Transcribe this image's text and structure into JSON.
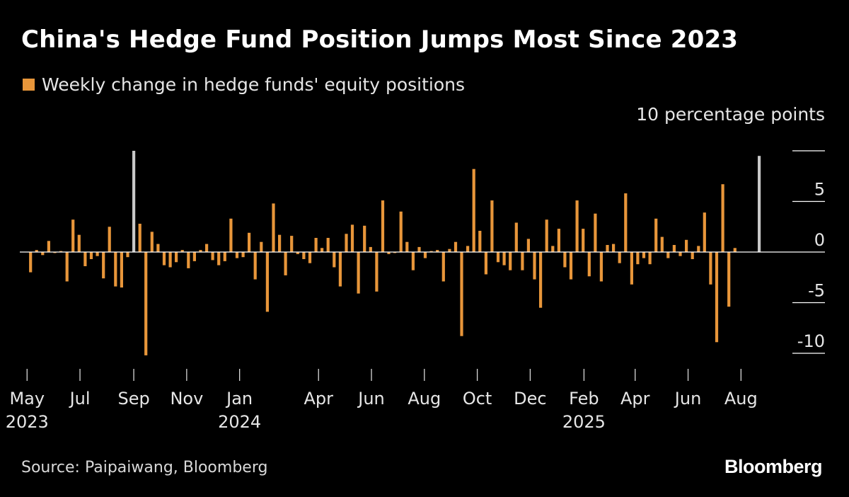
{
  "title": "China's Hedge Fund Position Jumps Most Since 2023",
  "source": "Source: Paipaiwang, Bloomberg",
  "brand": "Bloomberg",
  "colors": {
    "background": "#000000",
    "bar": "#e8963a",
    "highlight": "#c8c8c8",
    "axis": "#ffffff"
  },
  "chart_data": {
    "type": "bar",
    "legend": "Weekly change in hedge funds' equity positions",
    "ylabel": "10 percentage points",
    "ylim": [
      -10.5,
      10
    ],
    "yticks": [
      10,
      5,
      0,
      -5,
      -10
    ],
    "ytick_labels": [
      "",
      "5",
      "0",
      "-5",
      "-10"
    ],
    "x_start": "2023-04-21",
    "x_end": "2025-09-26",
    "month_ticks": [
      {
        "date": "2023-05-01",
        "label": "May",
        "year": "2023"
      },
      {
        "date": "2023-07-01",
        "label": "Jul"
      },
      {
        "date": "2023-09-01",
        "label": "Sep"
      },
      {
        "date": "2023-11-01",
        "label": "Nov"
      },
      {
        "date": "2024-01-01",
        "label": "Jan",
        "year": "2024"
      },
      {
        "date": "2024-04-01",
        "label": "Apr"
      },
      {
        "date": "2024-06-01",
        "label": "Jun"
      },
      {
        "date": "2024-08-01",
        "label": "Aug"
      },
      {
        "date": "2024-10-01",
        "label": "Oct"
      },
      {
        "date": "2024-12-01",
        "label": "Dec"
      },
      {
        "date": "2025-02-01",
        "label": "Feb",
        "year": "2025"
      },
      {
        "date": "2025-04-01",
        "label": "Apr"
      },
      {
        "date": "2025-06-01",
        "label": "Jun"
      },
      {
        "date": "2025-08-01",
        "label": "Aug"
      }
    ],
    "highlighted_dates": [
      "2023-09-01",
      "2025-08-22"
    ],
    "points": [
      {
        "date": "2023-05-05",
        "value": -2.0
      },
      {
        "date": "2023-05-12",
        "value": 0.2
      },
      {
        "date": "2023-05-19",
        "value": -0.3
      },
      {
        "date": "2023-05-26",
        "value": 1.1
      },
      {
        "date": "2023-06-02",
        "value": -0.1
      },
      {
        "date": "2023-06-09",
        "value": 0.1
      },
      {
        "date": "2023-06-16",
        "value": -2.9
      },
      {
        "date": "2023-06-23",
        "value": 3.2
      },
      {
        "date": "2023-06-30",
        "value": 1.7
      },
      {
        "date": "2023-07-07",
        "value": -1.4
      },
      {
        "date": "2023-07-14",
        "value": -0.7
      },
      {
        "date": "2023-07-21",
        "value": -0.4
      },
      {
        "date": "2023-07-28",
        "value": -2.6
      },
      {
        "date": "2023-08-04",
        "value": 2.5
      },
      {
        "date": "2023-08-11",
        "value": -3.4
      },
      {
        "date": "2023-08-18",
        "value": -3.5
      },
      {
        "date": "2023-08-25",
        "value": -0.5
      },
      {
        "date": "2023-09-01",
        "value": 10.0
      },
      {
        "date": "2023-09-08",
        "value": 2.8
      },
      {
        "date": "2023-09-15",
        "value": -10.2
      },
      {
        "date": "2023-09-22",
        "value": 2.0
      },
      {
        "date": "2023-09-29",
        "value": 0.8
      },
      {
        "date": "2023-10-06",
        "value": -1.3
      },
      {
        "date": "2023-10-13",
        "value": -1.5
      },
      {
        "date": "2023-10-20",
        "value": -1.0
      },
      {
        "date": "2023-10-27",
        "value": 0.2
      },
      {
        "date": "2023-11-03",
        "value": -1.6
      },
      {
        "date": "2023-11-10",
        "value": -0.9
      },
      {
        "date": "2023-11-17",
        "value": 0.2
      },
      {
        "date": "2023-11-24",
        "value": 0.8
      },
      {
        "date": "2023-12-01",
        "value": -0.8
      },
      {
        "date": "2023-12-08",
        "value": -1.3
      },
      {
        "date": "2023-12-15",
        "value": -0.9
      },
      {
        "date": "2023-12-22",
        "value": 3.3
      },
      {
        "date": "2023-12-29",
        "value": -0.6
      },
      {
        "date": "2024-01-05",
        "value": -0.5
      },
      {
        "date": "2024-01-12",
        "value": 1.9
      },
      {
        "date": "2024-01-19",
        "value": -2.7
      },
      {
        "date": "2024-01-26",
        "value": 1.0
      },
      {
        "date": "2024-02-02",
        "value": -5.9
      },
      {
        "date": "2024-02-09",
        "value": 4.8
      },
      {
        "date": "2024-02-16",
        "value": 1.7
      },
      {
        "date": "2024-02-23",
        "value": -2.3
      },
      {
        "date": "2024-03-01",
        "value": 1.6
      },
      {
        "date": "2024-03-08",
        "value": -0.2
      },
      {
        "date": "2024-03-15",
        "value": -0.7
      },
      {
        "date": "2024-03-22",
        "value": -1.1
      },
      {
        "date": "2024-03-29",
        "value": 1.4
      },
      {
        "date": "2024-04-05",
        "value": 0.4
      },
      {
        "date": "2024-04-12",
        "value": 1.4
      },
      {
        "date": "2024-04-19",
        "value": -1.5
      },
      {
        "date": "2024-04-26",
        "value": -3.4
      },
      {
        "date": "2024-05-03",
        "value": 1.8
      },
      {
        "date": "2024-05-10",
        "value": 2.7
      },
      {
        "date": "2024-05-17",
        "value": -4.1
      },
      {
        "date": "2024-05-24",
        "value": 2.6
      },
      {
        "date": "2024-05-31",
        "value": 0.5
      },
      {
        "date": "2024-06-07",
        "value": -3.9
      },
      {
        "date": "2024-06-14",
        "value": 5.1
      },
      {
        "date": "2024-06-21",
        "value": -0.2
      },
      {
        "date": "2024-06-28",
        "value": -0.1
      },
      {
        "date": "2024-07-05",
        "value": 4.0
      },
      {
        "date": "2024-07-12",
        "value": 1.0
      },
      {
        "date": "2024-07-19",
        "value": -1.8
      },
      {
        "date": "2024-07-26",
        "value": 0.5
      },
      {
        "date": "2024-08-02",
        "value": -0.6
      },
      {
        "date": "2024-08-09",
        "value": 0.1
      },
      {
        "date": "2024-08-16",
        "value": 0.2
      },
      {
        "date": "2024-08-23",
        "value": -2.9
      },
      {
        "date": "2024-08-30",
        "value": 0.3
      },
      {
        "date": "2024-09-06",
        "value": 1.0
      },
      {
        "date": "2024-09-13",
        "value": -8.3
      },
      {
        "date": "2024-09-20",
        "value": 0.6
      },
      {
        "date": "2024-09-27",
        "value": 8.2
      },
      {
        "date": "2024-10-04",
        "value": 2.1
      },
      {
        "date": "2024-10-11",
        "value": -2.2
      },
      {
        "date": "2024-10-18",
        "value": 5.1
      },
      {
        "date": "2024-10-25",
        "value": -1.0
      },
      {
        "date": "2024-11-01",
        "value": -1.3
      },
      {
        "date": "2024-11-08",
        "value": -1.8
      },
      {
        "date": "2024-11-15",
        "value": 2.9
      },
      {
        "date": "2024-11-22",
        "value": -1.8
      },
      {
        "date": "2024-11-29",
        "value": 1.3
      },
      {
        "date": "2024-12-06",
        "value": -2.7
      },
      {
        "date": "2024-12-13",
        "value": -5.5
      },
      {
        "date": "2024-12-20",
        "value": 3.2
      },
      {
        "date": "2024-12-27",
        "value": 0.6
      },
      {
        "date": "2025-01-03",
        "value": 2.3
      },
      {
        "date": "2025-01-10",
        "value": -1.5
      },
      {
        "date": "2025-01-17",
        "value": -2.7
      },
      {
        "date": "2025-01-24",
        "value": 5.1
      },
      {
        "date": "2025-01-31",
        "value": 2.3
      },
      {
        "date": "2025-02-07",
        "value": -2.4
      },
      {
        "date": "2025-02-14",
        "value": 3.8
      },
      {
        "date": "2025-02-21",
        "value": -2.9
      },
      {
        "date": "2025-02-28",
        "value": 0.7
      },
      {
        "date": "2025-03-07",
        "value": 0.8
      },
      {
        "date": "2025-03-14",
        "value": -1.1
      },
      {
        "date": "2025-03-21",
        "value": 5.8
      },
      {
        "date": "2025-03-28",
        "value": -3.2
      },
      {
        "date": "2025-04-04",
        "value": -1.2
      },
      {
        "date": "2025-04-11",
        "value": -0.6
      },
      {
        "date": "2025-04-18",
        "value": -1.2
      },
      {
        "date": "2025-04-25",
        "value": 3.3
      },
      {
        "date": "2025-05-02",
        "value": 1.5
      },
      {
        "date": "2025-05-09",
        "value": -0.6
      },
      {
        "date": "2025-05-16",
        "value": 0.7
      },
      {
        "date": "2025-05-23",
        "value": -0.4
      },
      {
        "date": "2025-05-30",
        "value": 1.2
      },
      {
        "date": "2025-06-06",
        "value": -0.7
      },
      {
        "date": "2025-06-13",
        "value": 0.6
      },
      {
        "date": "2025-06-20",
        "value": 3.9
      },
      {
        "date": "2025-06-27",
        "value": -3.2
      },
      {
        "date": "2025-07-04",
        "value": -8.9
      },
      {
        "date": "2025-07-11",
        "value": 6.7
      },
      {
        "date": "2025-07-18",
        "value": -5.4
      },
      {
        "date": "2025-07-25",
        "value": 0.4
      },
      {
        "date": "2025-08-22",
        "value": 9.5
      }
    ]
  }
}
